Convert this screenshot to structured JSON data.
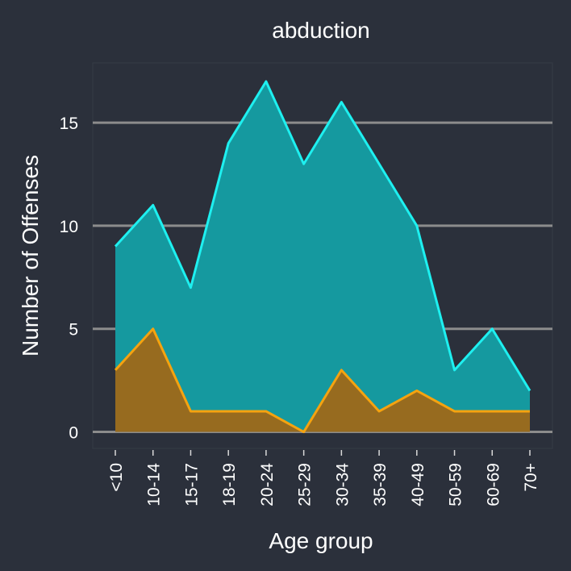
{
  "chart_data": {
    "type": "area",
    "title": "abduction",
    "xlabel": "Age group",
    "ylabel": "Number of Offenses",
    "categories": [
      "<10",
      "10-14",
      "15-17",
      "18-19",
      "20-24",
      "25-29",
      "30-34",
      "35-39",
      "40-49",
      "50-59",
      "60-69",
      "70+"
    ],
    "series": [
      {
        "values": [
          9,
          11,
          7,
          14,
          17,
          13,
          16,
          13,
          10,
          3,
          5,
          2
        ],
        "line_color": "#1ef0f0",
        "fill_color": "#15999f"
      },
      {
        "values": [
          3,
          5,
          1,
          1,
          1,
          0,
          3,
          1,
          2,
          1,
          1,
          1
        ],
        "line_color": "#f5a30f",
        "fill_color": "#976b1f"
      }
    ],
    "yticks": [
      0,
      5,
      10,
      15
    ],
    "ylim": [
      -0.8,
      17.9
    ],
    "grid": true,
    "legend": "none",
    "colors": {
      "background": "#2b303b",
      "grid": "#8c8c8c",
      "text": "#ffffff"
    }
  }
}
